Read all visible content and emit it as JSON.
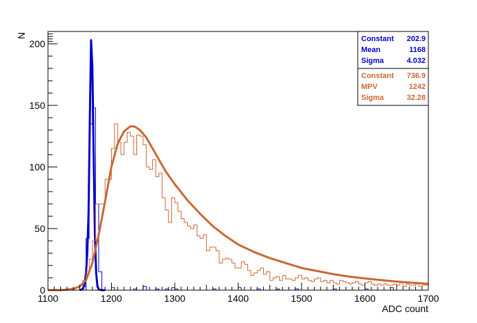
{
  "chart_data": {
    "type": "histogram",
    "xlabel": "ADC count",
    "ylabel": "N",
    "xlim": [
      1100,
      1700
    ],
    "ylim": [
      0,
      210
    ],
    "x_ticks": [
      1100,
      1200,
      1300,
      1400,
      1500,
      1600,
      1700
    ],
    "y_ticks": [
      0,
      50,
      100,
      150,
      200
    ],
    "grid": false,
    "series": [
      {
        "key": "pedestal",
        "color": "#0000cc",
        "histogram": {
          "color": "#0000cc",
          "bin_width": 5,
          "bins_x": [
            1155,
            1160,
            1165,
            1170,
            1175,
            1180,
            1200,
            1235,
            1250,
            1270,
            1285,
            1295,
            1300,
            1360,
            1400,
            1430,
            1460,
            1490,
            1550,
            1600,
            1640
          ],
          "bins_y": [
            3,
            42,
            135,
            148,
            70,
            15,
            2,
            1,
            3,
            1,
            1,
            2,
            1,
            1,
            2,
            1,
            1,
            1,
            1,
            1,
            2
          ]
        },
        "fit": {
          "function": "gaus",
          "x": [
            1150,
            1155,
            1158,
            1160,
            1162,
            1164,
            1166,
            1168,
            1170,
            1172,
            1174,
            1176,
            1178,
            1180,
            1185,
            1190
          ],
          "y": [
            0.1,
            0.9,
            5.4,
            14,
            30,
            62,
            140,
            202.9,
            181,
            111,
            47,
            14,
            3,
            0.6,
            0,
            0
          ]
        },
        "stats": [
          {
            "label": "Constant",
            "value": "202.9"
          },
          {
            "label": "Mean",
            "value": "1168"
          },
          {
            "label": "Sigma",
            "value": "4.032"
          }
        ]
      },
      {
        "key": "signal",
        "color": "#cc6633",
        "histogram": {
          "color": "#cc6633",
          "bin_width": 5,
          "bins_x": [
            1150,
            1155,
            1160,
            1165,
            1170,
            1175,
            1180,
            1185,
            1190,
            1195,
            1200,
            1205,
            1210,
            1215,
            1220,
            1225,
            1230,
            1235,
            1240,
            1245,
            1250,
            1255,
            1260,
            1265,
            1270,
            1275,
            1280,
            1285,
            1290,
            1295,
            1300,
            1305,
            1310,
            1315,
            1320,
            1325,
            1330,
            1335,
            1340,
            1345,
            1350,
            1355,
            1360,
            1365,
            1370,
            1375,
            1380,
            1385,
            1390,
            1395,
            1400,
            1405,
            1410,
            1415,
            1420,
            1425,
            1430,
            1435,
            1440,
            1445,
            1450,
            1455,
            1460,
            1465,
            1470,
            1475,
            1480,
            1485,
            1490,
            1495,
            1500,
            1505,
            1510,
            1515,
            1520,
            1525,
            1530,
            1535,
            1540,
            1545,
            1550,
            1555,
            1560,
            1565,
            1570,
            1575,
            1580,
            1585,
            1590,
            1595,
            1600,
            1605,
            1610,
            1615,
            1620,
            1625,
            1630,
            1635,
            1640,
            1645,
            1650,
            1655,
            1660,
            1665,
            1670,
            1675,
            1680,
            1685,
            1690,
            1695
          ],
          "bins_y": [
            4,
            8,
            15,
            25,
            40,
            70,
            70,
            70,
            90,
            90,
            115,
            135,
            120,
            110,
            120,
            128,
            125,
            110,
            126,
            125,
            118,
            100,
            98,
            106,
            92,
            95,
            75,
            65,
            55,
            75,
            71,
            64,
            58,
            55,
            52,
            50,
            53,
            44,
            42,
            45,
            32,
            35,
            35,
            32,
            22,
            25,
            26,
            25,
            22,
            18,
            18,
            23,
            21,
            16,
            12,
            14,
            16,
            18,
            13,
            15,
            8,
            10,
            11,
            8,
            12,
            9,
            9,
            8,
            10,
            12,
            9,
            10,
            8,
            7,
            9,
            10,
            7,
            8,
            6,
            8,
            6,
            5,
            8,
            7,
            6,
            5,
            6,
            7,
            5,
            4,
            6,
            7,
            5,
            4,
            5,
            4,
            5,
            4,
            4,
            5,
            4,
            6,
            3,
            5,
            4,
            4,
            5,
            3,
            4,
            4
          ]
        },
        "fit": {
          "function": "landau",
          "x": [
            1100,
            1120,
            1140,
            1150,
            1160,
            1170,
            1180,
            1190,
            1200,
            1210,
            1220,
            1230,
            1237,
            1245,
            1255,
            1265,
            1275,
            1285,
            1300,
            1320,
            1340,
            1360,
            1380,
            1400,
            1425,
            1450,
            1475,
            1500,
            1525,
            1550,
            1575,
            1600,
            1625,
            1650,
            1675,
            1700
          ],
          "y": [
            0,
            0,
            1,
            3,
            8,
            22,
            45,
            72,
            100,
            119,
            129,
            133,
            132.8,
            130,
            124,
            115,
            106,
            97,
            86,
            73,
            62,
            52,
            44,
            37,
            31,
            26,
            22,
            18,
            15.5,
            13,
            11,
            9.5,
            8.2,
            7,
            6,
            5.2
          ]
        },
        "stats": [
          {
            "label": "Constant",
            "value": "736.9"
          },
          {
            "label": "MPV",
            "value": "1242"
          },
          {
            "label": "Sigma",
            "value": "32.28"
          }
        ]
      }
    ]
  }
}
